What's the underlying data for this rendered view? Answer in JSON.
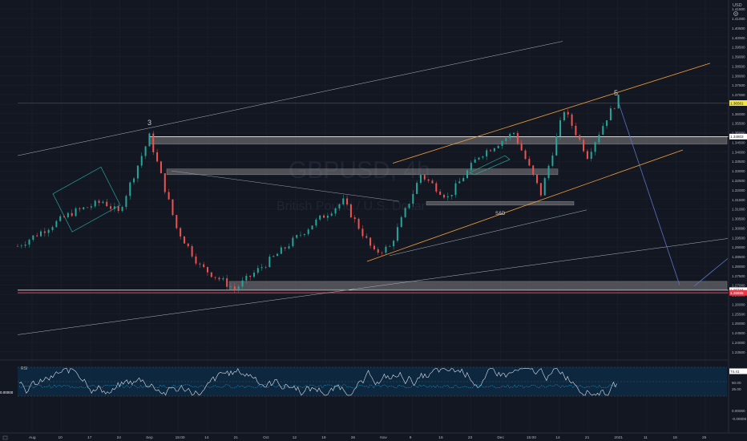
{
  "watermark": {
    "symbol": "GBPUSD, 4h",
    "description": "British Pound / U.S. Dollar"
  },
  "currency_label": "USD",
  "settings_icon": "gear-icon",
  "annotations": {
    "wave_3": "3",
    "wave_5": "5",
    "snd_zone": "S&D"
  },
  "price_badges": {
    "last": "1.36561",
    "level_a": "1.34803",
    "level_b": "1.26744",
    "level_c": "1.26595"
  },
  "rsi": {
    "label": "RSI",
    "value_badge": "74.41",
    "levels": [
      "50.00",
      "25.00"
    ],
    "left_value": "0.00000"
  },
  "colors": {
    "background": "#131722",
    "grid": "#1e222d",
    "up": "#26a69a",
    "down": "#ef5350",
    "channel_orange": "#f59f3a",
    "resistance_line": "#ffffff",
    "support_red": "#f23645",
    "rsi_band": "#0d2a44",
    "rsi_line": "#e0e3eb",
    "rsi_ma": "#2196c9",
    "projection": "#5b74c6"
  },
  "chart_data": {
    "type": "candlestick",
    "y_axis_ticks": [
      "1.41500",
      "1.41000",
      "1.40500",
      "1.40000",
      "1.39500",
      "1.39000",
      "1.38500",
      "1.38000",
      "1.37500",
      "1.37000",
      "1.36500",
      "1.36000",
      "1.35500",
      "1.35000",
      "1.34500",
      "1.34000",
      "1.33500",
      "1.33000",
      "1.32500",
      "1.32000",
      "1.31500",
      "1.31000",
      "1.30500",
      "1.30000",
      "1.29500",
      "1.29000",
      "1.28500",
      "1.28000",
      "1.27500",
      "1.27000",
      "1.26500",
      "1.26000",
      "1.25500",
      "1.25000",
      "1.24500",
      "1.24000",
      "1.23500"
    ],
    "rsi_axis_ticks": [
      "0.00000",
      "-0.00000"
    ],
    "x_axis_ticks": [
      "Aug",
      "10",
      "17",
      "24",
      "Sep",
      "15:00",
      "14",
      "21",
      "Oct",
      "12",
      "19",
      "26",
      "Nov",
      "9",
      "16",
      "23",
      "Dec",
      "15:00",
      "14",
      "21",
      "2021",
      "11",
      "18",
      "25"
    ],
    "ylim": [
      1.232,
      1.418
    ],
    "x_range": [
      "2020-07-29",
      "2021-01-28"
    ],
    "key_points": [
      {
        "x": "2020-07-29",
        "y": 1.2905
      },
      {
        "x": "2020-08-12",
        "y": 1.308
      },
      {
        "x": "2020-08-20",
        "y": 1.314
      },
      {
        "x": "2020-08-24",
        "y": 1.308
      },
      {
        "x": "2020-09-01",
        "y": 1.348
      },
      {
        "x": "2020-09-08",
        "y": 1.3
      },
      {
        "x": "2020-09-14",
        "y": 1.28
      },
      {
        "x": "2020-09-23",
        "y": 1.268
      },
      {
        "x": "2020-10-05",
        "y": 1.288
      },
      {
        "x": "2020-10-13",
        "y": 1.302
      },
      {
        "x": "2020-10-21",
        "y": 1.314
      },
      {
        "x": "2020-10-29",
        "y": 1.287
      },
      {
        "x": "2020-11-02",
        "y": 1.29
      },
      {
        "x": "2020-11-10",
        "y": 1.328
      },
      {
        "x": "2020-11-17",
        "y": 1.316
      },
      {
        "x": "2020-11-25",
        "y": 1.338
      },
      {
        "x": "2020-12-04",
        "y": 1.35
      },
      {
        "x": "2020-12-11",
        "y": 1.318
      },
      {
        "x": "2020-12-17",
        "y": 1.362
      },
      {
        "x": "2020-12-23",
        "y": 1.338
      },
      {
        "x": "2020-12-28",
        "y": 1.358
      },
      {
        "x": "2020-12-31",
        "y": 1.368
      }
    ],
    "zones": [
      {
        "name": "resistance-zone-high",
        "y_top": 1.348,
        "y_bottom": 1.344
      },
      {
        "name": "resistance-zone-mid",
        "y_top": 1.331,
        "y_bottom": 1.328
      },
      {
        "name": "snd-zone",
        "y_top": 1.314,
        "y_bottom": 1.312
      },
      {
        "name": "support-zone-low",
        "y_top": 1.272,
        "y_bottom": 1.268
      }
    ],
    "horizontal_levels": [
      1.3656,
      1.348,
      1.2674,
      1.266
    ],
    "rsi_levels": [
      70,
      50,
      30
    ]
  }
}
